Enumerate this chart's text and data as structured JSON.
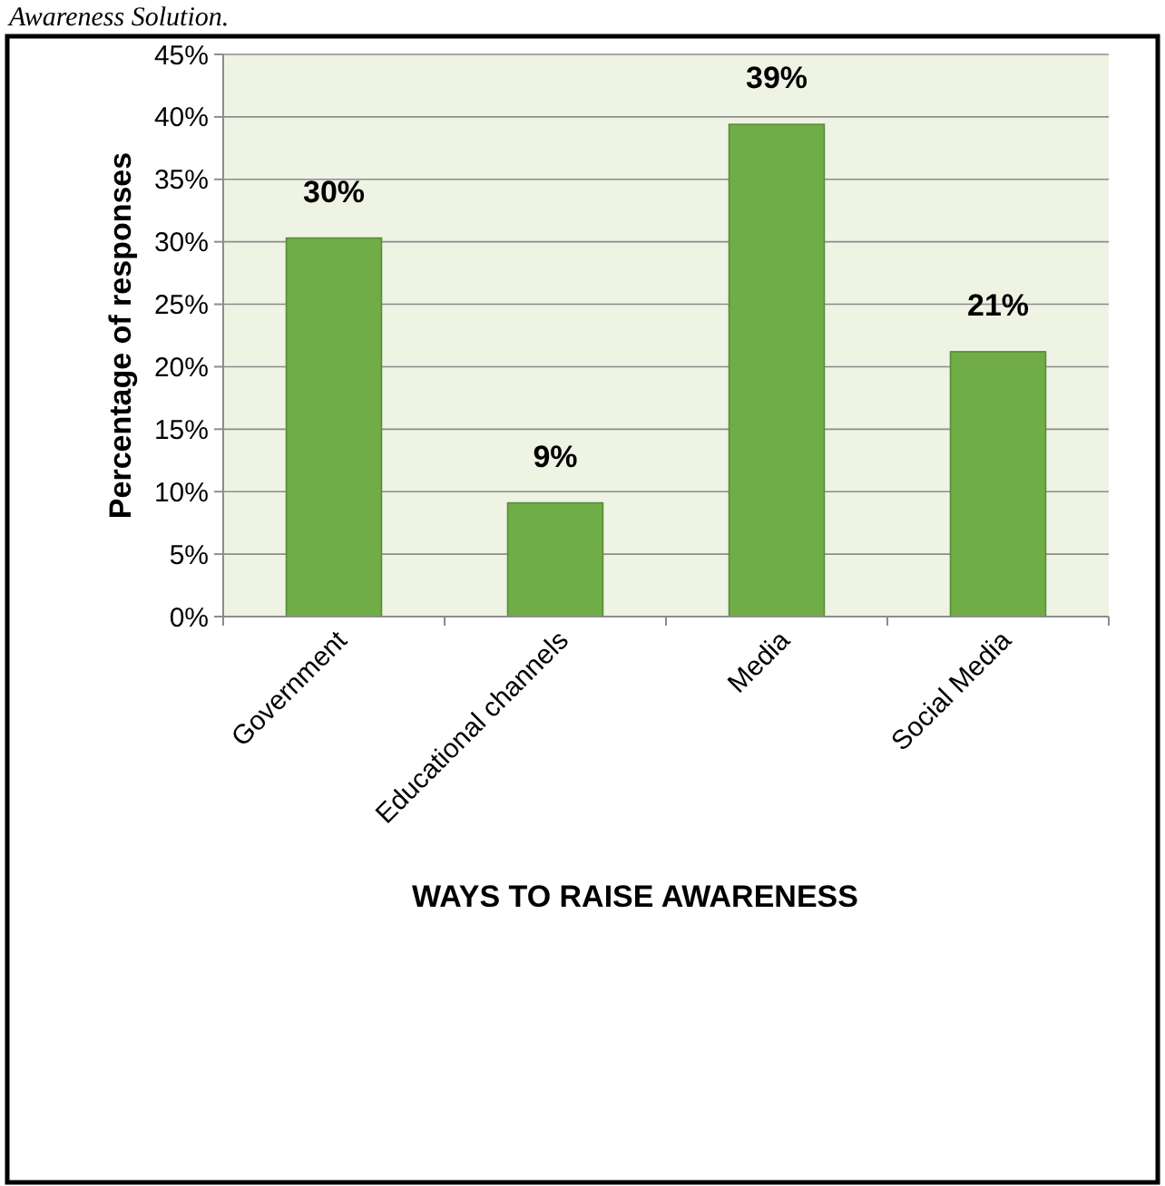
{
  "chart_data": {
    "type": "bar",
    "xlabel": "WAYS TO RAISE AWARENESS",
    "ylabel": "Percentage of responses",
    "annotations": [
      "Awareness Solution."
    ],
    "categories": [
      "Government",
      "Educational channels",
      "Media",
      "Social Media"
    ],
    "values": [
      30.3,
      9.1,
      39.4,
      21.2
    ],
    "value_labels": [
      "30%",
      "9%",
      "39%",
      "21%"
    ],
    "color": "#70ad47",
    "ylim": [
      0,
      45
    ],
    "yticks": [
      {
        "value": 0,
        "label": "0%"
      },
      {
        "value": 5,
        "label": "5%"
      },
      {
        "value": 10,
        "label": "10%"
      },
      {
        "value": 15,
        "label": "15%"
      },
      {
        "value": 20,
        "label": "20%"
      },
      {
        "value": 25,
        "label": "25%"
      },
      {
        "value": 30,
        "label": "30%"
      },
      {
        "value": 35,
        "label": "35%"
      },
      {
        "value": 40,
        "label": "40%"
      },
      {
        "value": 45,
        "label": "45%"
      }
    ],
    "grid": "y"
  }
}
